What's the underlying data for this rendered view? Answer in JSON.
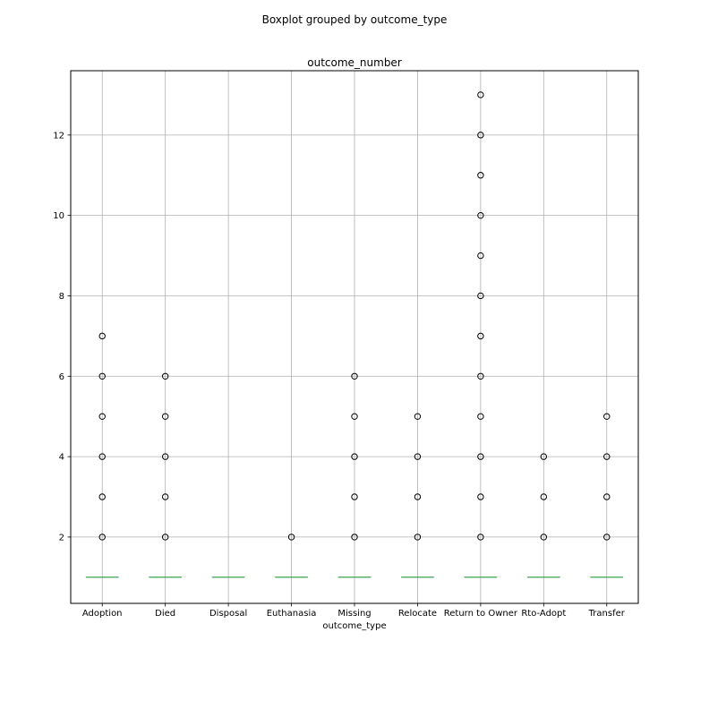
{
  "figure": {
    "suptitle": "Boxplot grouped by outcome_type"
  },
  "chart_data": {
    "type": "box",
    "title": "outcome_number",
    "xlabel": "outcome_type",
    "ylabel": "",
    "ylim": [
      0.35,
      13.6
    ],
    "yticks": [
      2,
      4,
      6,
      8,
      10,
      12
    ],
    "grid": true,
    "categories": [
      "Adoption",
      "Died",
      "Disposal",
      "Euthanasia",
      "Missing",
      "Relocate",
      "Return to Owner",
      "Rto-Adopt",
      "Transfer"
    ],
    "median": [
      1,
      1,
      1,
      1,
      1,
      1,
      1,
      1,
      1
    ],
    "q1": [
      1,
      1,
      1,
      1,
      1,
      1,
      1,
      1,
      1
    ],
    "q3": [
      1,
      1,
      1,
      1,
      1,
      1,
      1,
      1,
      1
    ],
    "whisker_low": [
      1,
      1,
      1,
      1,
      1,
      1,
      1,
      1,
      1
    ],
    "whisker_high": [
      1,
      1,
      1,
      1,
      1,
      1,
      1,
      1,
      1
    ],
    "outliers": [
      [
        2,
        3,
        4,
        5,
        6,
        7
      ],
      [
        2,
        3,
        4,
        5,
        6
      ],
      [],
      [
        2
      ],
      [
        2,
        3,
        4,
        5,
        6
      ],
      [
        2,
        3,
        4,
        5
      ],
      [
        2,
        3,
        4,
        5,
        6,
        7,
        8,
        9,
        10,
        11,
        12,
        13
      ],
      [
        2,
        3,
        4
      ],
      [
        2,
        3,
        4,
        5
      ]
    ],
    "colors": {
      "median": "#2ca02c",
      "box": "#1f77b4",
      "outlier_edge": "#000000",
      "grid": "#b0b0b0"
    }
  }
}
